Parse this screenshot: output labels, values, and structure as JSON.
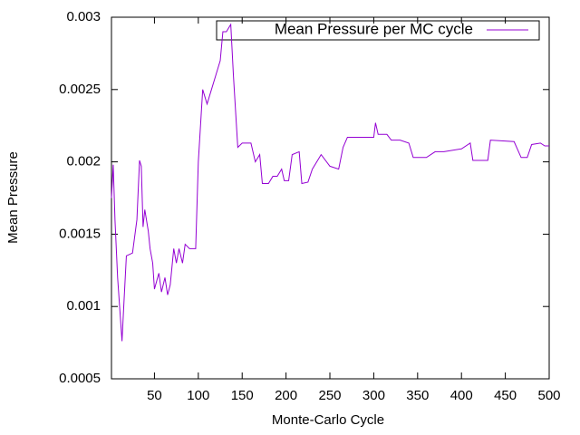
{
  "chart_data": {
    "type": "line",
    "xlabel": "Monte-Carlo Cycle",
    "ylabel": "Mean Pressure",
    "xlim": [
      1,
      500
    ],
    "ylim": [
      0.0005,
      0.003
    ],
    "xticks": [
      50,
      100,
      150,
      200,
      250,
      300,
      350,
      400,
      450,
      500
    ],
    "yticks": [
      0.0005,
      0.001,
      0.0015,
      0.002,
      0.0025,
      0.003
    ],
    "legend": "top-right",
    "x": [
      1,
      3,
      5,
      8,
      12,
      13,
      15,
      18,
      25,
      30,
      33,
      35,
      37,
      39,
      43,
      45,
      48,
      50,
      55,
      58,
      62,
      65,
      68,
      72,
      75,
      78,
      82,
      85,
      90,
      97,
      100,
      105,
      110,
      115,
      120,
      125,
      128,
      132,
      137,
      140,
      145,
      150,
      160,
      165,
      170,
      173,
      180,
      185,
      190,
      195,
      198,
      203,
      207,
      215,
      218,
      225,
      230,
      240,
      250,
      260,
      265,
      270,
      300,
      302,
      305,
      315,
      320,
      330,
      340,
      345,
      360,
      370,
      380,
      400,
      410,
      413,
      430,
      433,
      460,
      468,
      475,
      480,
      490,
      495,
      500
    ],
    "series": [
      {
        "name": "Mean Pressure per MC cycle",
        "color": "#9400d3",
        "values": [
          0.00175,
          0.00198,
          0.0016,
          0.0012,
          0.00085,
          0.00076,
          0.001,
          0.00135,
          0.00137,
          0.0016,
          0.00201,
          0.00197,
          0.00155,
          0.00167,
          0.00152,
          0.0014,
          0.0013,
          0.00112,
          0.00123,
          0.0011,
          0.0012,
          0.00108,
          0.00115,
          0.0014,
          0.0013,
          0.0014,
          0.0013,
          0.00143,
          0.0014,
          0.0014,
          0.002,
          0.0025,
          0.0024,
          0.0025,
          0.0026,
          0.0027,
          0.0029,
          0.0029,
          0.00295,
          0.0026,
          0.0021,
          0.00213,
          0.00213,
          0.002,
          0.00205,
          0.00185,
          0.00185,
          0.0019,
          0.0019,
          0.00195,
          0.00187,
          0.00187,
          0.00205,
          0.00207,
          0.00185,
          0.00186,
          0.00195,
          0.00205,
          0.00197,
          0.00195,
          0.0021,
          0.00217,
          0.00217,
          0.00227,
          0.00219,
          0.00219,
          0.00215,
          0.00215,
          0.00213,
          0.00203,
          0.00203,
          0.00207,
          0.00207,
          0.00209,
          0.00213,
          0.00201,
          0.00201,
          0.00215,
          0.00214,
          0.00203,
          0.00203,
          0.00212,
          0.00213,
          0.00211,
          0.00211
        ]
      }
    ]
  }
}
